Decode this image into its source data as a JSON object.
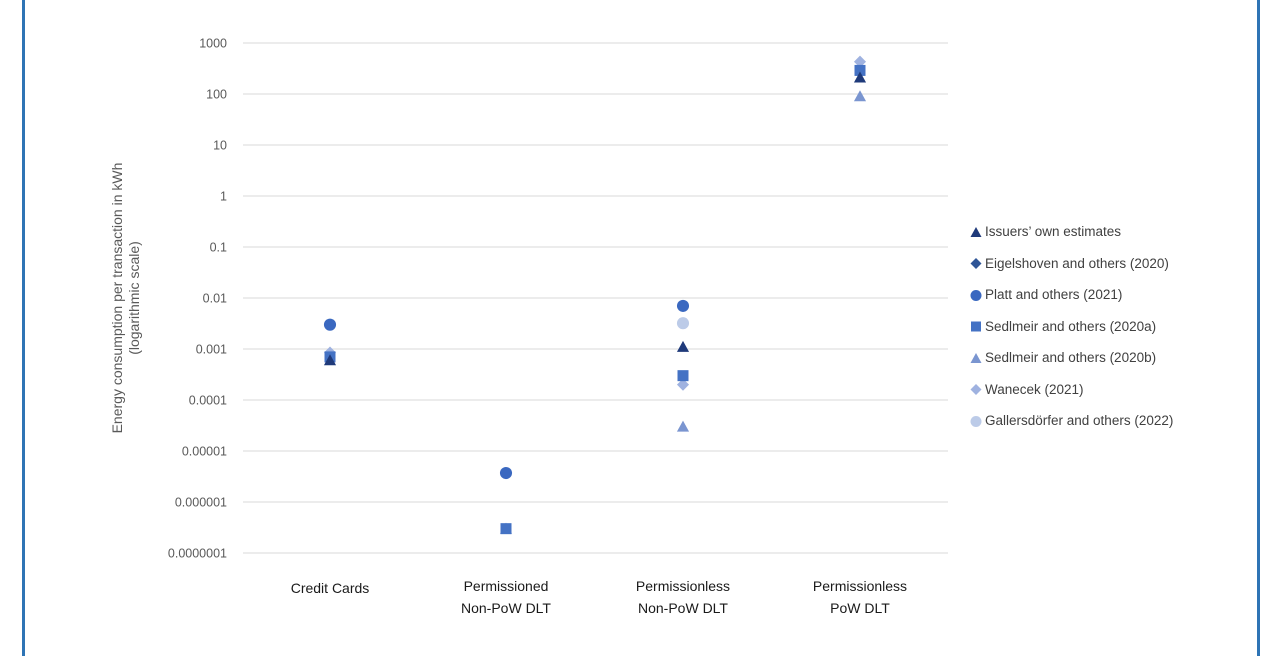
{
  "chart_data": {
    "type": "scatter",
    "title": "",
    "xlabel": "",
    "ylabel": "Energy consumption per transaction in kWh (logarithmic scale)",
    "ylabel_lines": [
      "Energy consumption per transaction in kWh",
      "(logarithmic scale)"
    ],
    "yscale": "log",
    "ylim": [
      1e-07,
      1000
    ],
    "yticks": [
      "1000",
      "100",
      "10",
      "1",
      "0.1",
      "0.01",
      "0.001",
      "0.0001",
      "0.00001",
      "0.000001",
      "0.0000001"
    ],
    "grid": true,
    "legend_position": "right",
    "categories": [
      {
        "label_lines": [
          "Credit Cards"
        ]
      },
      {
        "label_lines": [
          "Permissioned",
          "Non-PoW DLT"
        ]
      },
      {
        "label_lines": [
          "Permissionless",
          "Non-PoW DLT"
        ]
      },
      {
        "label_lines": [
          "Permissionless",
          "PoW DLT"
        ]
      }
    ],
    "series": [
      {
        "name": "Issuers’ own estimates",
        "marker": "triangle",
        "color": "#1f3a7a",
        "values": [
          0.0006,
          null,
          0.0011,
          210
        ]
      },
      {
        "name": "Eigelshoven and others (2020)",
        "marker": "diamond",
        "color": "#2f5597",
        "values": [
          null,
          null,
          null,
          null
        ]
      },
      {
        "name": "Platt and others (2021)",
        "marker": "circle",
        "color": "#3a68c0",
        "values": [
          0.003,
          3.7e-06,
          0.007,
          null
        ]
      },
      {
        "name": "Sedlmeir and others (2020a)",
        "marker": "square",
        "color": "#4472c4",
        "values": [
          0.0007,
          3e-07,
          0.0003,
          290
        ]
      },
      {
        "name": "Sedlmeir and others (2020b)",
        "marker": "triangle",
        "color": "#7a95d0",
        "values": [
          null,
          3e-07,
          3e-05,
          90
        ]
      },
      {
        "name": "Wanecek (2021)",
        "marker": "diamond",
        "color": "#9fb2e0",
        "values": [
          0.00085,
          null,
          0.0002,
          430
        ]
      },
      {
        "name": "Gallersdörfer and others (2022)",
        "marker": "circle",
        "color": "#bccbe8",
        "values": [
          null,
          null,
          0.0032,
          null
        ]
      }
    ]
  }
}
